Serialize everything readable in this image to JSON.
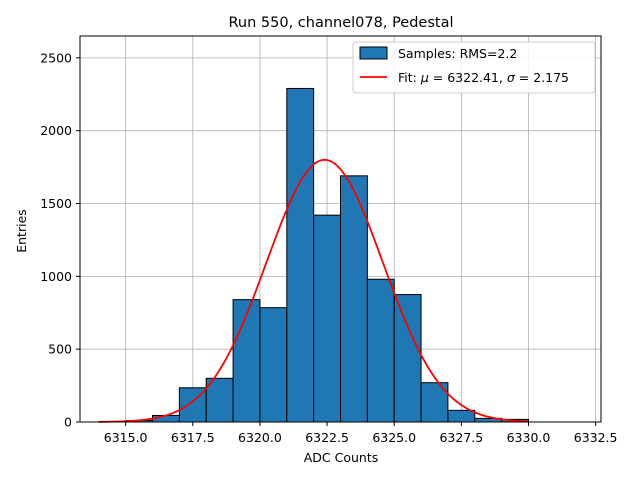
{
  "chart_data": {
    "type": "bar",
    "title": "Run 550, channel078, Pedestal",
    "xlabel": "ADC Counts",
    "ylabel": "Entries",
    "xlim": [
      6313.3,
      6332.7
    ],
    "ylim": [
      0,
      2650
    ],
    "x_ticks": [
      "6315.0",
      "6317.5",
      "6320.0",
      "6322.5",
      "6325.0",
      "6327.5",
      "6330.0",
      "6332.5"
    ],
    "x_tick_values": [
      6315.0,
      6317.5,
      6320.0,
      6322.5,
      6325.0,
      6327.5,
      6330.0,
      6332.5
    ],
    "y_ticks": [
      "0",
      "500",
      "1000",
      "1500",
      "2000",
      "2500"
    ],
    "y_tick_values": [
      0,
      500,
      1000,
      1500,
      2000,
      2500
    ],
    "grid": true,
    "legend_position": "top-right",
    "histogram": {
      "name": "Samples: RMS=2.2",
      "color": "#1f77b4",
      "edge_color": "#000000",
      "bin_edges": [
        6314,
        6315,
        6316,
        6317,
        6318,
        6319,
        6320,
        6321,
        6322,
        6323,
        6324,
        6325,
        6326,
        6327,
        6328,
        6329,
        6330
      ],
      "counts": [
        3,
        10,
        45,
        235,
        300,
        840,
        785,
        2290,
        1420,
        1690,
        980,
        875,
        270,
        80,
        25,
        18
      ]
    },
    "fit": {
      "legend_prefix": "Fit: ",
      "legend_mu": "μ",
      "legend_mid": " = 6322.41, ",
      "legend_sigma": "σ",
      "legend_suffix": " = 2.175",
      "color": "#ff0000",
      "mu": 6322.41,
      "sigma": 2.175,
      "amplitude": 1800,
      "x_range": [
        6314,
        6330
      ]
    }
  }
}
